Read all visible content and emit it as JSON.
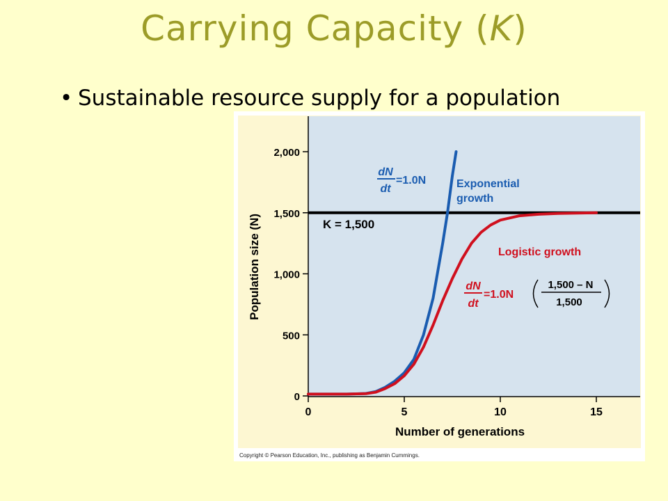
{
  "slide": {
    "title_main": "Carrying Capacity (",
    "title_k": "K",
    "title_end": ")",
    "bullet": "Sustainable resource supply for a population"
  },
  "colors": {
    "background": "#FFFFCC",
    "title": "#9C9C28",
    "plot_bg": "#D6E3EE",
    "exponential": "#1A5CB0",
    "logistic": "#D0101E",
    "k_line": "#000000"
  },
  "chart_data": {
    "type": "line",
    "xlabel": "Number of generations",
    "ylabel": "Population size (N)",
    "xlim": [
      0,
      17.5
    ],
    "ylim": [
      0,
      2300
    ],
    "x_ticks": [
      0,
      5,
      10,
      15
    ],
    "x_tick_labels": [
      "0",
      "5",
      "10",
      "15"
    ],
    "y_ticks": [
      0,
      500,
      1000,
      1500,
      2000
    ],
    "y_tick_labels": [
      "0",
      "500",
      "1,000",
      "1,500",
      "2,000"
    ],
    "grid": false,
    "k_line": {
      "value": 1500,
      "label": "K = 1,500"
    },
    "series": [
      {
        "name": "Exponential growth",
        "key": "exponential",
        "x": [
          0,
          1,
          2,
          3,
          3.5,
          4,
          4.5,
          5,
          5.5,
          6,
          6.5,
          7,
          7.25,
          7.5,
          7.7
        ],
        "y": [
          15,
          15,
          15,
          20,
          35,
          70,
          120,
          190,
          300,
          500,
          800,
          1250,
          1500,
          1800,
          2000
        ]
      },
      {
        "name": "Logistic growth",
        "key": "logistic",
        "x": [
          0,
          1,
          2,
          3,
          3.5,
          4,
          4.5,
          5,
          5.5,
          6,
          6.5,
          7,
          7.5,
          8,
          8.5,
          9,
          9.5,
          10,
          11,
          12,
          13,
          14,
          15
        ],
        "y": [
          15,
          15,
          15,
          18,
          30,
          60,
          100,
          165,
          260,
          400,
          580,
          780,
          960,
          1120,
          1250,
          1340,
          1400,
          1440,
          1475,
          1488,
          1494,
          1497,
          1500
        ]
      }
    ],
    "annotations": {
      "exp_eq_num": "dN",
      "exp_eq_den": "dt",
      "exp_eq_rhs": "=1.0N",
      "exp_label_1": "Exponential",
      "exp_label_2": "growth",
      "log_label": "Logistic growth",
      "log_eq_num": "dN",
      "log_eq_den": "dt",
      "log_eq_rhs": "=1.0N",
      "log_frac_num": "1,500 – N",
      "log_frac_den": "1,500"
    },
    "copyright": "Copyright © Pearson Education, Inc., publishing as Benjamin Cummings."
  }
}
